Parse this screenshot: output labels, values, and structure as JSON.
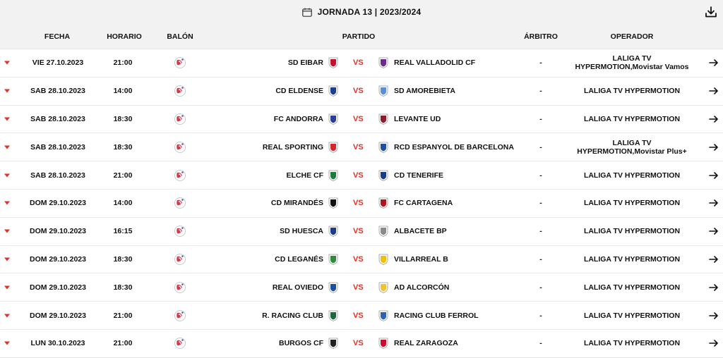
{
  "header": {
    "title": "JORNADA 13 | 2023/2024",
    "calendar_icon": "calendar-icon",
    "download_icon": "download-icon"
  },
  "columns": {
    "fecha": "FECHA",
    "horario": "HORARIO",
    "balon": "BALÓN",
    "partido": "PARTIDO",
    "arbitro": "ÁRBITRO",
    "operador": "OPERADOR"
  },
  "vs_label": "VS",
  "colors": {
    "accent": "#e2312a",
    "header_bg": "#f2f2f2"
  },
  "matches": [
    {
      "date": "VIE 27.10.2023",
      "time": "21:00",
      "home": "SD EIBAR",
      "away": "REAL VALLADOLID CF",
      "referee": "-",
      "operator": "LALIGA TV HYPERMOTION,Movistar Vamos",
      "home_crest": "#c8102e",
      "away_crest": "#6a2c91"
    },
    {
      "date": "SAB 28.10.2023",
      "time": "14:00",
      "home": "CD ELDENSE",
      "away": "SD AMOREBIETA",
      "referee": "-",
      "operator": "LALIGA TV HYPERMOTION",
      "home_crest": "#1c3f8f",
      "away_crest": "#5a8fd8"
    },
    {
      "date": "SAB 28.10.2023",
      "time": "18:30",
      "home": "FC ANDORRA",
      "away": "LEVANTE UD",
      "referee": "-",
      "operator": "LALIGA TV HYPERMOTION",
      "home_crest": "#2c3e94",
      "away_crest": "#8b1e2e"
    },
    {
      "date": "SAB 28.10.2023",
      "time": "18:30",
      "home": "REAL SPORTING",
      "away": "RCD ESPANYOL DE BARCELONA",
      "referee": "-",
      "operator": "LALIGA TV HYPERMOTION,Movistar Plus+",
      "home_crest": "#d8232a",
      "away_crest": "#1f4fa0"
    },
    {
      "date": "SAB 28.10.2023",
      "time": "21:00",
      "home": "ELCHE CF",
      "away": "CD TENERIFE",
      "referee": "-",
      "operator": "LALIGA TV HYPERMOTION",
      "home_crest": "#1b7d3d",
      "away_crest": "#1a3a8a"
    },
    {
      "date": "DOM 29.10.2023",
      "time": "14:00",
      "home": "CD MIRANDÉS",
      "away": "FC CARTAGENA",
      "referee": "-",
      "operator": "LALIGA TV HYPERMOTION",
      "home_crest": "#111111",
      "away_crest": "#b5121b"
    },
    {
      "date": "DOM 29.10.2023",
      "time": "16:15",
      "home": "SD HUESCA",
      "away": "ALBACETE BP",
      "referee": "-",
      "operator": "LALIGA TV HYPERMOTION",
      "home_crest": "#1d3f8a",
      "away_crest": "#8a8a8a"
    },
    {
      "date": "DOM 29.10.2023",
      "time": "18:30",
      "home": "CD LEGANÉS",
      "away": "VILLARREAL B",
      "referee": "-",
      "operator": "LALIGA TV HYPERMOTION",
      "home_crest": "#2e8b3e",
      "away_crest": "#f2c200"
    },
    {
      "date": "DOM 29.10.2023",
      "time": "18:30",
      "home": "REAL OVIEDO",
      "away": "AD ALCORCÓN",
      "referee": "-",
      "operator": "LALIGA TV HYPERMOTION",
      "home_crest": "#1b4fa0",
      "away_crest": "#f1c232"
    },
    {
      "date": "DOM 29.10.2023",
      "time": "21:00",
      "home": "R. RACING CLUB",
      "away": "RACING CLUB FERROL",
      "referee": "-",
      "operator": "LALIGA TV HYPERMOTION",
      "home_crest": "#1b6a3a",
      "away_crest": "#2d64b0"
    },
    {
      "date": "LUN 30.10.2023",
      "time": "21:00",
      "home": "BURGOS CF",
      "away": "REAL ZARAGOZA",
      "referee": "-",
      "operator": "LALIGA TV HYPERMOTION",
      "home_crest": "#222222",
      "away_crest": "#c8102e"
    }
  ]
}
